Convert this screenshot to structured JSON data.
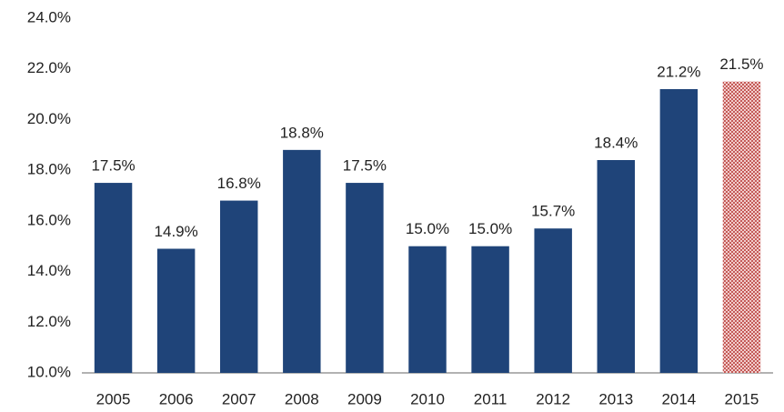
{
  "chart_data": {
    "type": "bar",
    "categories": [
      "2005",
      "2006",
      "2007",
      "2008",
      "2009",
      "2010",
      "2011",
      "2012",
      "2013",
      "2014",
      "2015"
    ],
    "values": [
      17.5,
      14.9,
      16.8,
      18.8,
      17.5,
      15.0,
      15.0,
      15.7,
      18.4,
      21.2,
      21.5
    ],
    "value_labels": [
      "17.5%",
      "14.9%",
      "16.8%",
      "18.8%",
      "17.5%",
      "15.0%",
      "15.0%",
      "15.7%",
      "18.4%",
      "21.2%",
      "21.5%"
    ],
    "colors": [
      "#1f4479",
      "#1f4479",
      "#1f4479",
      "#1f4479",
      "#1f4479",
      "#1f4479",
      "#1f4479",
      "#1f4479",
      "#1f4479",
      "#1f4479",
      "#c0504d"
    ],
    "hatched": [
      false,
      false,
      false,
      false,
      false,
      false,
      false,
      false,
      false,
      false,
      true
    ],
    "ylim": [
      10,
      24
    ],
    "yticks": [
      {
        "value": 10,
        "label": "10.0%"
      },
      {
        "value": 12,
        "label": "12.0%"
      },
      {
        "value": 14,
        "label": "14.0%"
      },
      {
        "value": 16,
        "label": "16.0%"
      },
      {
        "value": 18,
        "label": "18.0%"
      },
      {
        "value": 20,
        "label": "20.0%"
      },
      {
        "value": 22,
        "label": "22.0%"
      },
      {
        "value": 24,
        "label": "24.0%"
      }
    ],
    "grid": false
  }
}
